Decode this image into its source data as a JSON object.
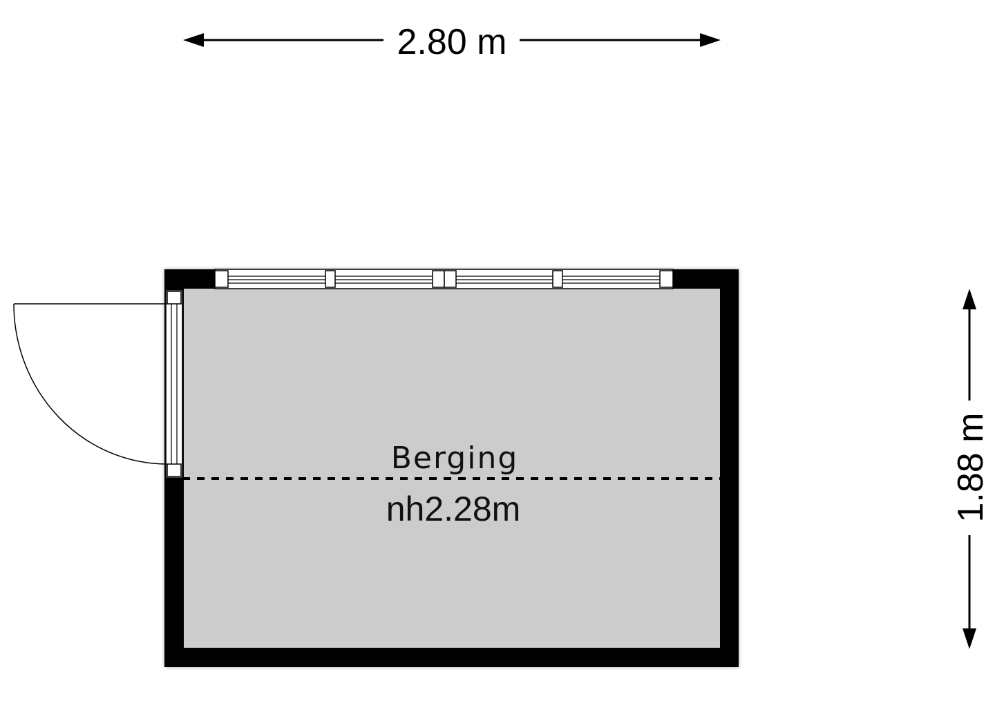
{
  "plan": {
    "width_label": "2.80 m",
    "depth_label": "1.88 m",
    "room": {
      "name": "Berging",
      "height_label": "nh2.28m"
    },
    "colors": {
      "wall": "#000000",
      "floor": "#cccccc",
      "window_frame": "#ffffff",
      "line": "#000000"
    }
  }
}
